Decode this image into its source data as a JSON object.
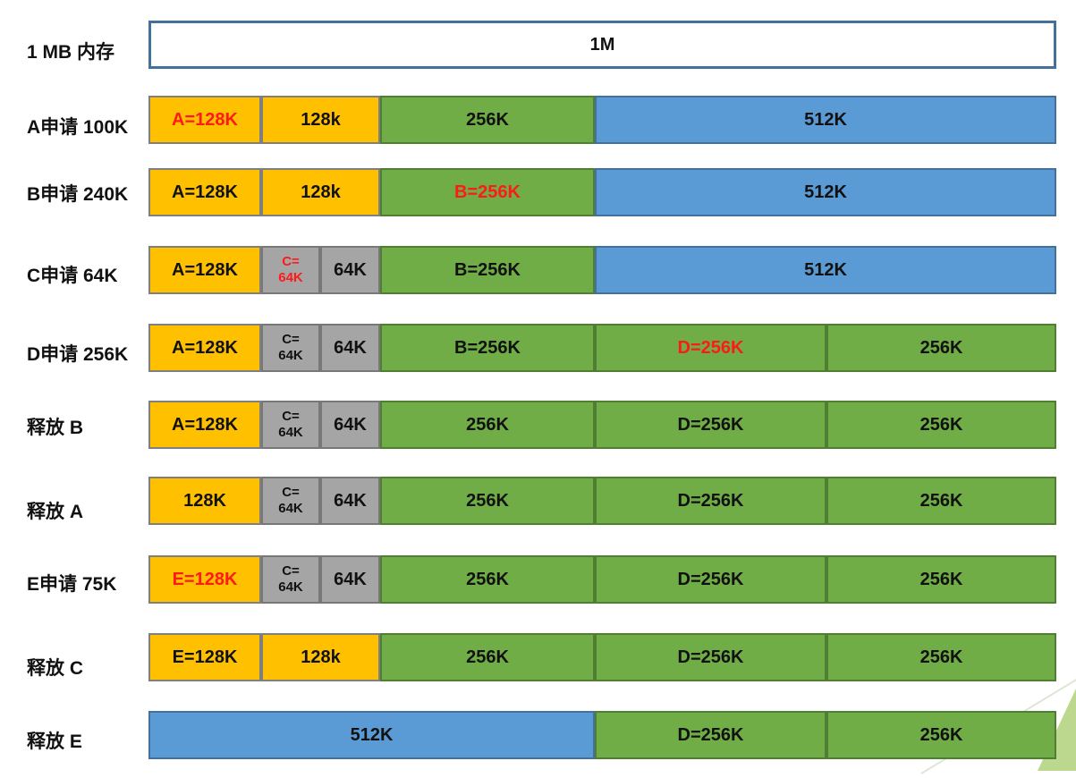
{
  "colors": {
    "free_white": "#ffffff",
    "yellow": "#ffc000",
    "green": "#70ad47",
    "blue": "#5b9bd5",
    "gray": "#a5a5a5",
    "highlight": "#ff1a1a"
  },
  "rows": [
    {
      "label": "1 MB 内存",
      "cells": [
        {
          "text": "1M",
          "color": "white"
        }
      ]
    },
    {
      "label": "A申请 100K",
      "cells": [
        {
          "text": "A=128K",
          "color": "yellow",
          "highlight": true
        },
        {
          "text": "128k",
          "color": "yellow"
        },
        {
          "text": "256K",
          "color": "green"
        },
        {
          "text": "512K",
          "color": "blue"
        }
      ]
    },
    {
      "label": "B申请 240K",
      "cells": [
        {
          "text": "A=128K",
          "color": "yellow"
        },
        {
          "text": "128k",
          "color": "yellow"
        },
        {
          "text": "B=256K",
          "color": "green",
          "highlight": true
        },
        {
          "text": "512K",
          "color": "blue"
        }
      ]
    },
    {
      "label": "C申请 64K",
      "cells": [
        {
          "text": "A=128K",
          "color": "yellow"
        },
        {
          "text": "C=\n64K",
          "color": "gray",
          "highlight": true
        },
        {
          "text": "64K",
          "color": "gray"
        },
        {
          "text": "B=256K",
          "color": "green"
        },
        {
          "text": "512K",
          "color": "blue"
        }
      ]
    },
    {
      "label": "D申请 256K",
      "cells": [
        {
          "text": "A=128K",
          "color": "yellow"
        },
        {
          "text": "C=\n64K",
          "color": "gray"
        },
        {
          "text": "64K",
          "color": "gray"
        },
        {
          "text": "B=256K",
          "color": "green"
        },
        {
          "text": "D=256K",
          "color": "green",
          "highlight": true
        },
        {
          "text": "256K",
          "color": "green"
        }
      ]
    },
    {
      "label": "释放 B",
      "cells": [
        {
          "text": "A=128K",
          "color": "yellow"
        },
        {
          "text": "C=\n64K",
          "color": "gray"
        },
        {
          "text": "64K",
          "color": "gray"
        },
        {
          "text": "256K",
          "color": "green"
        },
        {
          "text": "D=256K",
          "color": "green"
        },
        {
          "text": "256K",
          "color": "green"
        }
      ]
    },
    {
      "label": "释放 A",
      "cells": [
        {
          "text": "128K",
          "color": "yellow"
        },
        {
          "text": "C=\n64K",
          "color": "gray"
        },
        {
          "text": "64K",
          "color": "gray"
        },
        {
          "text": "256K",
          "color": "green"
        },
        {
          "text": "D=256K",
          "color": "green"
        },
        {
          "text": "256K",
          "color": "green"
        }
      ]
    },
    {
      "label": "E申请 75K",
      "cells": [
        {
          "text": "E=128K",
          "color": "yellow",
          "highlight": true
        },
        {
          "text": "C=\n64K",
          "color": "gray"
        },
        {
          "text": "64K",
          "color": "gray"
        },
        {
          "text": "256K",
          "color": "green"
        },
        {
          "text": "D=256K",
          "color": "green"
        },
        {
          "text": "256K",
          "color": "green"
        }
      ]
    },
    {
      "label": "释放 C",
      "cells": [
        {
          "text": "E=128K",
          "color": "yellow"
        },
        {
          "text": "128k",
          "color": "yellow"
        },
        {
          "text": "256K",
          "color": "green"
        },
        {
          "text": "D=256K",
          "color": "green"
        },
        {
          "text": "256K",
          "color": "green"
        }
      ]
    },
    {
      "label": "释放 E",
      "cells": [
        {
          "text": "512K",
          "color": "blue"
        },
        {
          "text": "D=256K",
          "color": "green"
        },
        {
          "text": "256K",
          "color": "green"
        }
      ]
    }
  ]
}
